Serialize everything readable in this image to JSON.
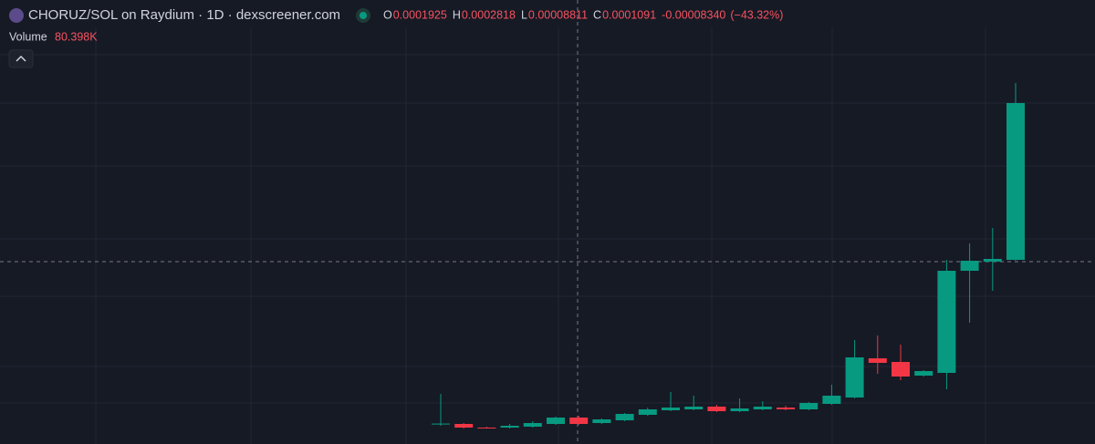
{
  "chart_data": {
    "type": "candlestick",
    "title": "CHORUZ/SOL on Raydium · 1D · dexscreener.com",
    "legend": [
      {
        "label": "O",
        "value": 0.0001925
      },
      {
        "label": "H",
        "value": 0.0002818
      },
      {
        "label": "L",
        "value": 8.811e-05
      },
      {
        "label": "C",
        "value": 0.0001091
      }
    ],
    "change": {
      "value": -8.34e-05,
      "label": "-0.00008340"
    },
    "change_pct": {
      "value": -43.32,
      "label": "(−43.32%)"
    },
    "volume_label": "Volume",
    "volume": {
      "value": 80398,
      "label": "80.398K"
    },
    "up_color": "#089981",
    "down_color": "#f23645",
    "ylim": [
      0,
      0.0002435
    ],
    "open": [
      1.1e-05,
      1.1e-05,
      9e-06,
      9e-06,
      9.5e-06,
      1.1e-05,
      1.45e-05,
      1.15e-05,
      1.3e-05,
      1.6e-05,
      1.85e-05,
      1.9e-05,
      2.05e-05,
      1.8e-05,
      1.9e-05,
      2e-05,
      1.9e-05,
      2.2e-05,
      2.55e-05,
      4.7e-05,
      4.5e-05,
      3.75e-05,
      3.9e-05,
      9.5e-05,
      0.0001,
      0.000101
    ],
    "high": [
      2.75e-05,
      1.15e-05,
      9.5e-06,
      1.1e-05,
      1.25e-05,
      1.5e-05,
      1.55e-05,
      1.4e-05,
      1.7e-05,
      2e-05,
      2.85e-05,
      2.65e-05,
      2.15e-05,
      2.5e-05,
      2.35e-05,
      2.1e-05,
      2.3e-05,
      3.25e-05,
      5.7e-05,
      5.95e-05,
      5.45e-05,
      4.05e-05,
      0.000101,
      0.00011,
      0.0001185,
      0.000198
    ],
    "low": [
      1e-05,
      8.5e-06,
      8.5e-06,
      8.5e-06,
      9e-06,
      1.05e-05,
      1.05e-05,
      1.1e-05,
      1.25e-05,
      1.55e-05,
      1.8e-05,
      1.85e-05,
      1.75e-05,
      1.75e-05,
      1.85e-05,
      1.85e-05,
      1.85e-05,
      2.15e-05,
      2.5e-05,
      3.85e-05,
      3.5e-05,
      3.7e-05,
      3e-05,
      6.65e-05,
      8.4e-05,
      0.0001005
    ],
    "close": [
      1.12e-05,
      9e-06,
      8.75e-06,
      1e-05,
      1.15e-05,
      1.45e-05,
      1.1e-05,
      1.35e-05,
      1.65e-05,
      1.9e-05,
      2e-05,
      2.05e-05,
      1.8e-05,
      1.95e-05,
      2.05e-05,
      1.9e-05,
      2.25e-05,
      2.65e-05,
      4.75e-05,
      4.45e-05,
      3.7e-05,
      4e-05,
      9.5e-05,
      0.0001005,
      0.0001015,
      0.000187
    ]
  }
}
